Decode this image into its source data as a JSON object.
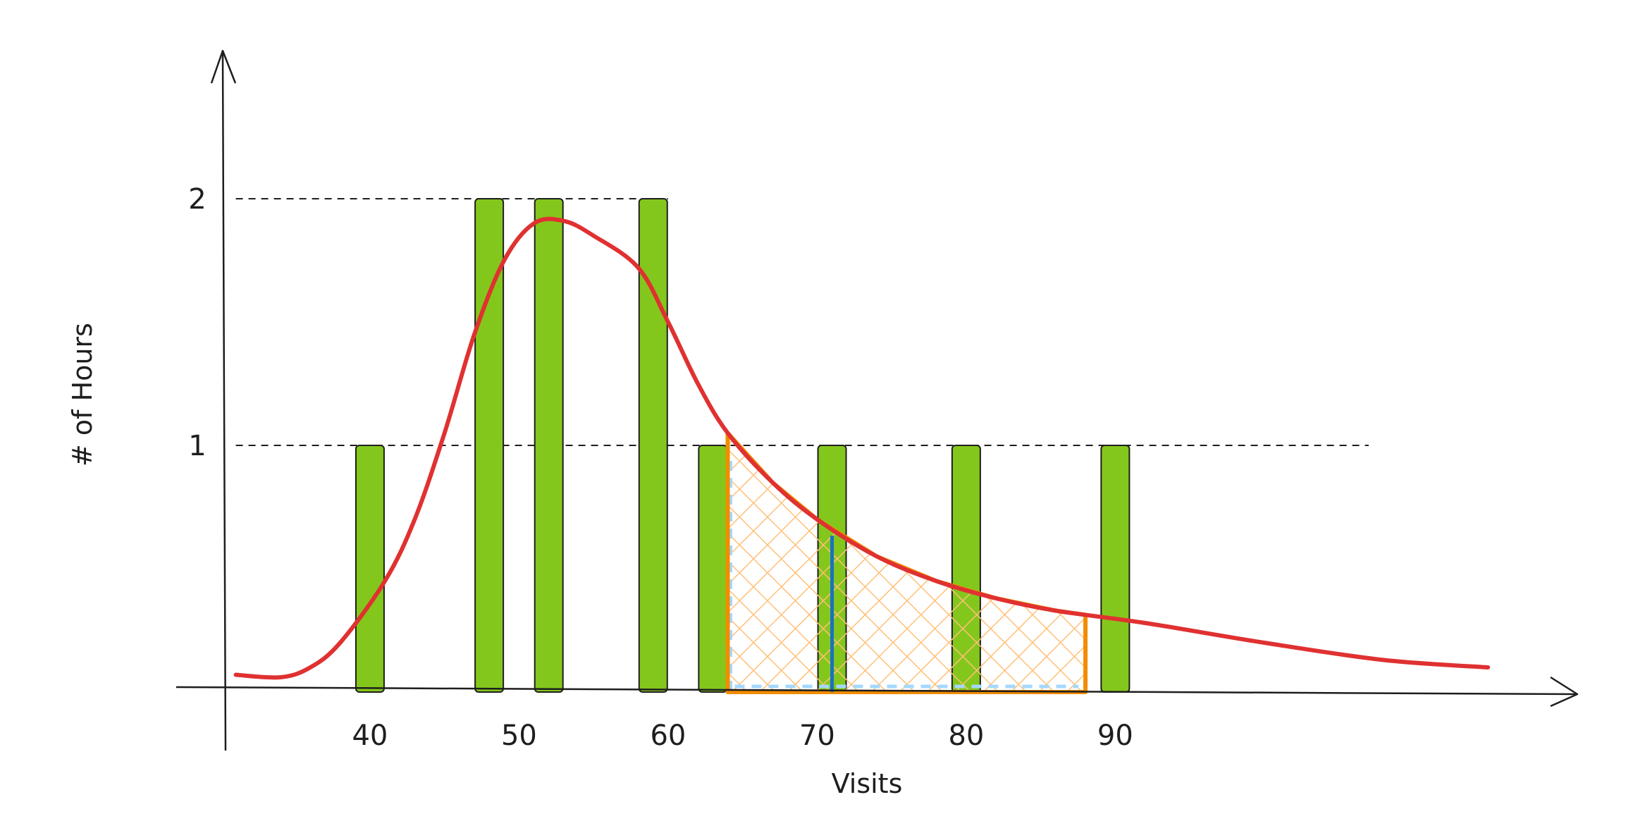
{
  "chart_data": {
    "type": "bar",
    "title": "",
    "xlabel": "Visits",
    "ylabel": "# of Hours",
    "x_ticks": [
      "40",
      "50",
      "60",
      "70",
      "80",
      "90"
    ],
    "y_ticks": [
      "1",
      "2"
    ],
    "bars": [
      {
        "x": 40,
        "value": 1
      },
      {
        "x": 48,
        "value": 2
      },
      {
        "x": 52,
        "value": 2
      },
      {
        "x": 59,
        "value": 2
      },
      {
        "x": 63,
        "value": 1
      },
      {
        "x": 71,
        "value": 1
      },
      {
        "x": 80,
        "value": 1
      },
      {
        "x": 90,
        "value": 1
      }
    ],
    "reference_lines": [
      {
        "y": 2,
        "x_from": 31,
        "x_to": 60
      },
      {
        "y": 1,
        "x_from": 31,
        "x_to": 107
      }
    ],
    "density_curve": [
      {
        "x": 31,
        "y": 0.07
      },
      {
        "x": 34,
        "y": 0.06
      },
      {
        "x": 36,
        "y": 0.1
      },
      {
        "x": 38,
        "y": 0.2
      },
      {
        "x": 41,
        "y": 0.45
      },
      {
        "x": 43,
        "y": 0.7
      },
      {
        "x": 45,
        "y": 1.05
      },
      {
        "x": 47,
        "y": 1.45
      },
      {
        "x": 49,
        "y": 1.75
      },
      {
        "x": 51,
        "y": 1.9
      },
      {
        "x": 53,
        "y": 1.91
      },
      {
        "x": 55,
        "y": 1.85
      },
      {
        "x": 58,
        "y": 1.72
      },
      {
        "x": 60,
        "y": 1.5
      },
      {
        "x": 62,
        "y": 1.25
      },
      {
        "x": 64,
        "y": 1.05
      },
      {
        "x": 67,
        "y": 0.85
      },
      {
        "x": 70,
        "y": 0.7
      },
      {
        "x": 74,
        "y": 0.55
      },
      {
        "x": 78,
        "y": 0.45
      },
      {
        "x": 82,
        "y": 0.38
      },
      {
        "x": 86,
        "y": 0.33
      },
      {
        "x": 92,
        "y": 0.28
      },
      {
        "x": 100,
        "y": 0.2
      },
      {
        "x": 108,
        "y": 0.13
      },
      {
        "x": 115,
        "y": 0.1
      }
    ],
    "shaded_region": {
      "x_from": 64,
      "x_to": 88
    },
    "marker_line": {
      "x": 71
    },
    "xlim": [
      27,
      121
    ],
    "ylim": [
      -0.08,
      2.6
    ],
    "grid": false,
    "legend": "none",
    "colors": {
      "bar_fill": "#84c71c",
      "bar_stroke": "#1e1e1e",
      "curve": "#e03131",
      "region_outline": "#f08c00",
      "region_hatch": "#ffc078",
      "region_edge": "#a5d8ff",
      "marker": "#1971c2",
      "axis": "#1e1e1e"
    }
  }
}
